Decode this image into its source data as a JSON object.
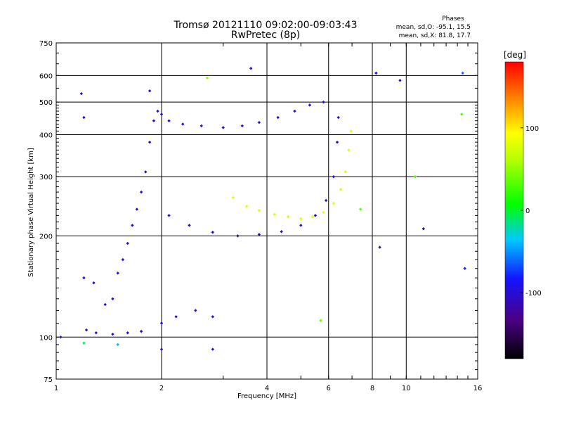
{
  "header": {
    "title": "Tromsø 20121110 09:02:00-09:03:43",
    "subtitle": "RwPretec (8p)"
  },
  "phases": {
    "title": "Phases",
    "line1": "mean, sd,O: -95.1, 15.5",
    "line2": "mean, sd,X:  81.8, 17.7"
  },
  "colorbar": {
    "label": "[deg]",
    "range": [
      -180,
      180
    ],
    "ticks": [
      100,
      0,
      -100
    ]
  },
  "chart_data": {
    "type": "scatter",
    "xlabel": "Frequency [MHz]",
    "ylabel": "Stationary phase Virtual Height [km]",
    "xscale": "log",
    "yscale": "log",
    "xlim": [
      1,
      16
    ],
    "ylim": [
      75,
      750
    ],
    "xticks": [
      1,
      2,
      4,
      6,
      8,
      10,
      16
    ],
    "yticks": [
      75,
      100,
      200,
      300,
      400,
      500,
      600,
      750
    ],
    "grid": true,
    "series": [
      {
        "points": [
          [
            1.03,
            100,
            -95
          ],
          [
            1.22,
            105,
            -100
          ],
          [
            1.3,
            103,
            -98
          ],
          [
            1.45,
            102,
            -100
          ],
          [
            1.6,
            103,
            -97
          ],
          [
            1.75,
            104,
            -100
          ],
          [
            1.2,
            150,
            -95
          ],
          [
            1.28,
            145,
            -98
          ],
          [
            1.38,
            125,
            -100
          ],
          [
            1.45,
            130,
            -95
          ],
          [
            1.5,
            155,
            -100
          ],
          [
            1.55,
            170,
            -96
          ],
          [
            1.6,
            190,
            -100
          ],
          [
            1.65,
            215,
            -95
          ],
          [
            1.7,
            240,
            -98
          ],
          [
            1.75,
            270,
            -100
          ],
          [
            1.8,
            310,
            -95
          ],
          [
            1.85,
            380,
            -100
          ],
          [
            1.9,
            440,
            -97
          ],
          [
            1.95,
            470,
            -100
          ],
          [
            2.0,
            460,
            -95
          ],
          [
            2.1,
            440,
            -100
          ],
          [
            2.3,
            430,
            -98
          ],
          [
            2.6,
            425,
            -100
          ],
          [
            3.0,
            420,
            -110
          ],
          [
            3.4,
            425,
            -100
          ],
          [
            3.8,
            435,
            -98
          ],
          [
            4.3,
            450,
            -96
          ],
          [
            4.8,
            470,
            -100
          ],
          [
            5.3,
            490,
            -97
          ],
          [
            5.8,
            500,
            -100
          ],
          [
            2.1,
            230,
            -96
          ],
          [
            2.4,
            215,
            -100
          ],
          [
            2.8,
            205,
            -110
          ],
          [
            3.3,
            200,
            -120
          ],
          [
            3.8,
            202,
            -115
          ],
          [
            4.4,
            206,
            -110
          ],
          [
            5.0,
            215,
            -100
          ],
          [
            5.5,
            230,
            -98
          ],
          [
            5.9,
            255,
            -100
          ],
          [
            6.2,
            300,
            -97
          ],
          [
            6.35,
            380,
            -100
          ],
          [
            6.4,
            450,
            -100
          ],
          [
            2.0,
            110,
            -95
          ],
          [
            2.2,
            115,
            -100
          ],
          [
            2.5,
            120,
            -98
          ],
          [
            2.8,
            115,
            -100
          ],
          [
            3.2,
            260,
            85
          ],
          [
            3.5,
            245,
            80
          ],
          [
            3.8,
            238,
            78
          ],
          [
            4.2,
            232,
            82
          ],
          [
            4.6,
            228,
            75
          ],
          [
            5.0,
            225,
            80
          ],
          [
            5.4,
            228,
            78
          ],
          [
            5.8,
            235,
            85
          ],
          [
            6.2,
            250,
            82
          ],
          [
            6.5,
            275,
            80
          ],
          [
            6.7,
            310,
            78
          ],
          [
            6.85,
            360,
            82
          ],
          [
            6.95,
            410,
            80
          ],
          [
            2.7,
            590,
            50
          ],
          [
            3.6,
            630,
            -95
          ],
          [
            8.2,
            610,
            -100
          ],
          [
            9.6,
            580,
            -110
          ],
          [
            14.5,
            610,
            -60
          ],
          [
            14.4,
            460,
            30
          ],
          [
            1.18,
            530,
            -95
          ],
          [
            1.2,
            450,
            -98
          ],
          [
            1.85,
            540,
            -95
          ],
          [
            5.7,
            112,
            40
          ],
          [
            7.4,
            240,
            35
          ],
          [
            10.6,
            300,
            30
          ],
          [
            11.2,
            210,
            -120
          ],
          [
            8.4,
            185,
            -90
          ],
          [
            14.7,
            160,
            -80
          ],
          [
            2.0,
            92,
            -95
          ],
          [
            2.8,
            92,
            -100
          ],
          [
            1.5,
            95,
            -40
          ],
          [
            1.2,
            96,
            -10
          ]
        ]
      }
    ]
  }
}
